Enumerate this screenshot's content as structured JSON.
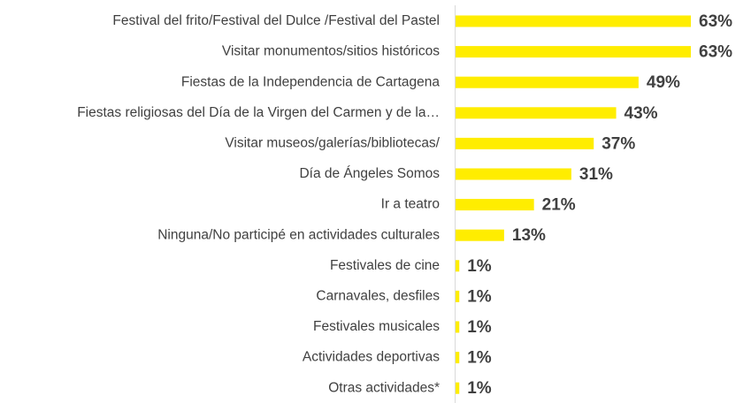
{
  "chart_data": {
    "type": "hbar",
    "categories": [
      "Festival del frito/Festival del Dulce /Festival del Pastel",
      "Visitar monumentos/sitios históricos",
      "Fiestas de la Independencia de Cartagena",
      "Fiestas religiosas del Día de la Virgen del Carmen y de la…",
      "Visitar museos/galerías/bibliotecas/",
      "Día de Ángeles Somos",
      "Ir a teatro",
      "Ninguna/No participé en actividades culturales",
      "Festivales de cine",
      "Carnavales, desfiles",
      "Festivales musicales",
      "Actividades deportivas",
      "Otras actividades*"
    ],
    "values": [
      63,
      63,
      49,
      43,
      37,
      31,
      21,
      13,
      1,
      1,
      1,
      1,
      1
    ],
    "value_labels": [
      "63%",
      "63%",
      "49%",
      "43%",
      "37%",
      "31%",
      "21%",
      "13%",
      "1%",
      "1%",
      "1%",
      "1%",
      "1%"
    ],
    "color": "#FFED00",
    "xlim": [
      0,
      63
    ]
  }
}
